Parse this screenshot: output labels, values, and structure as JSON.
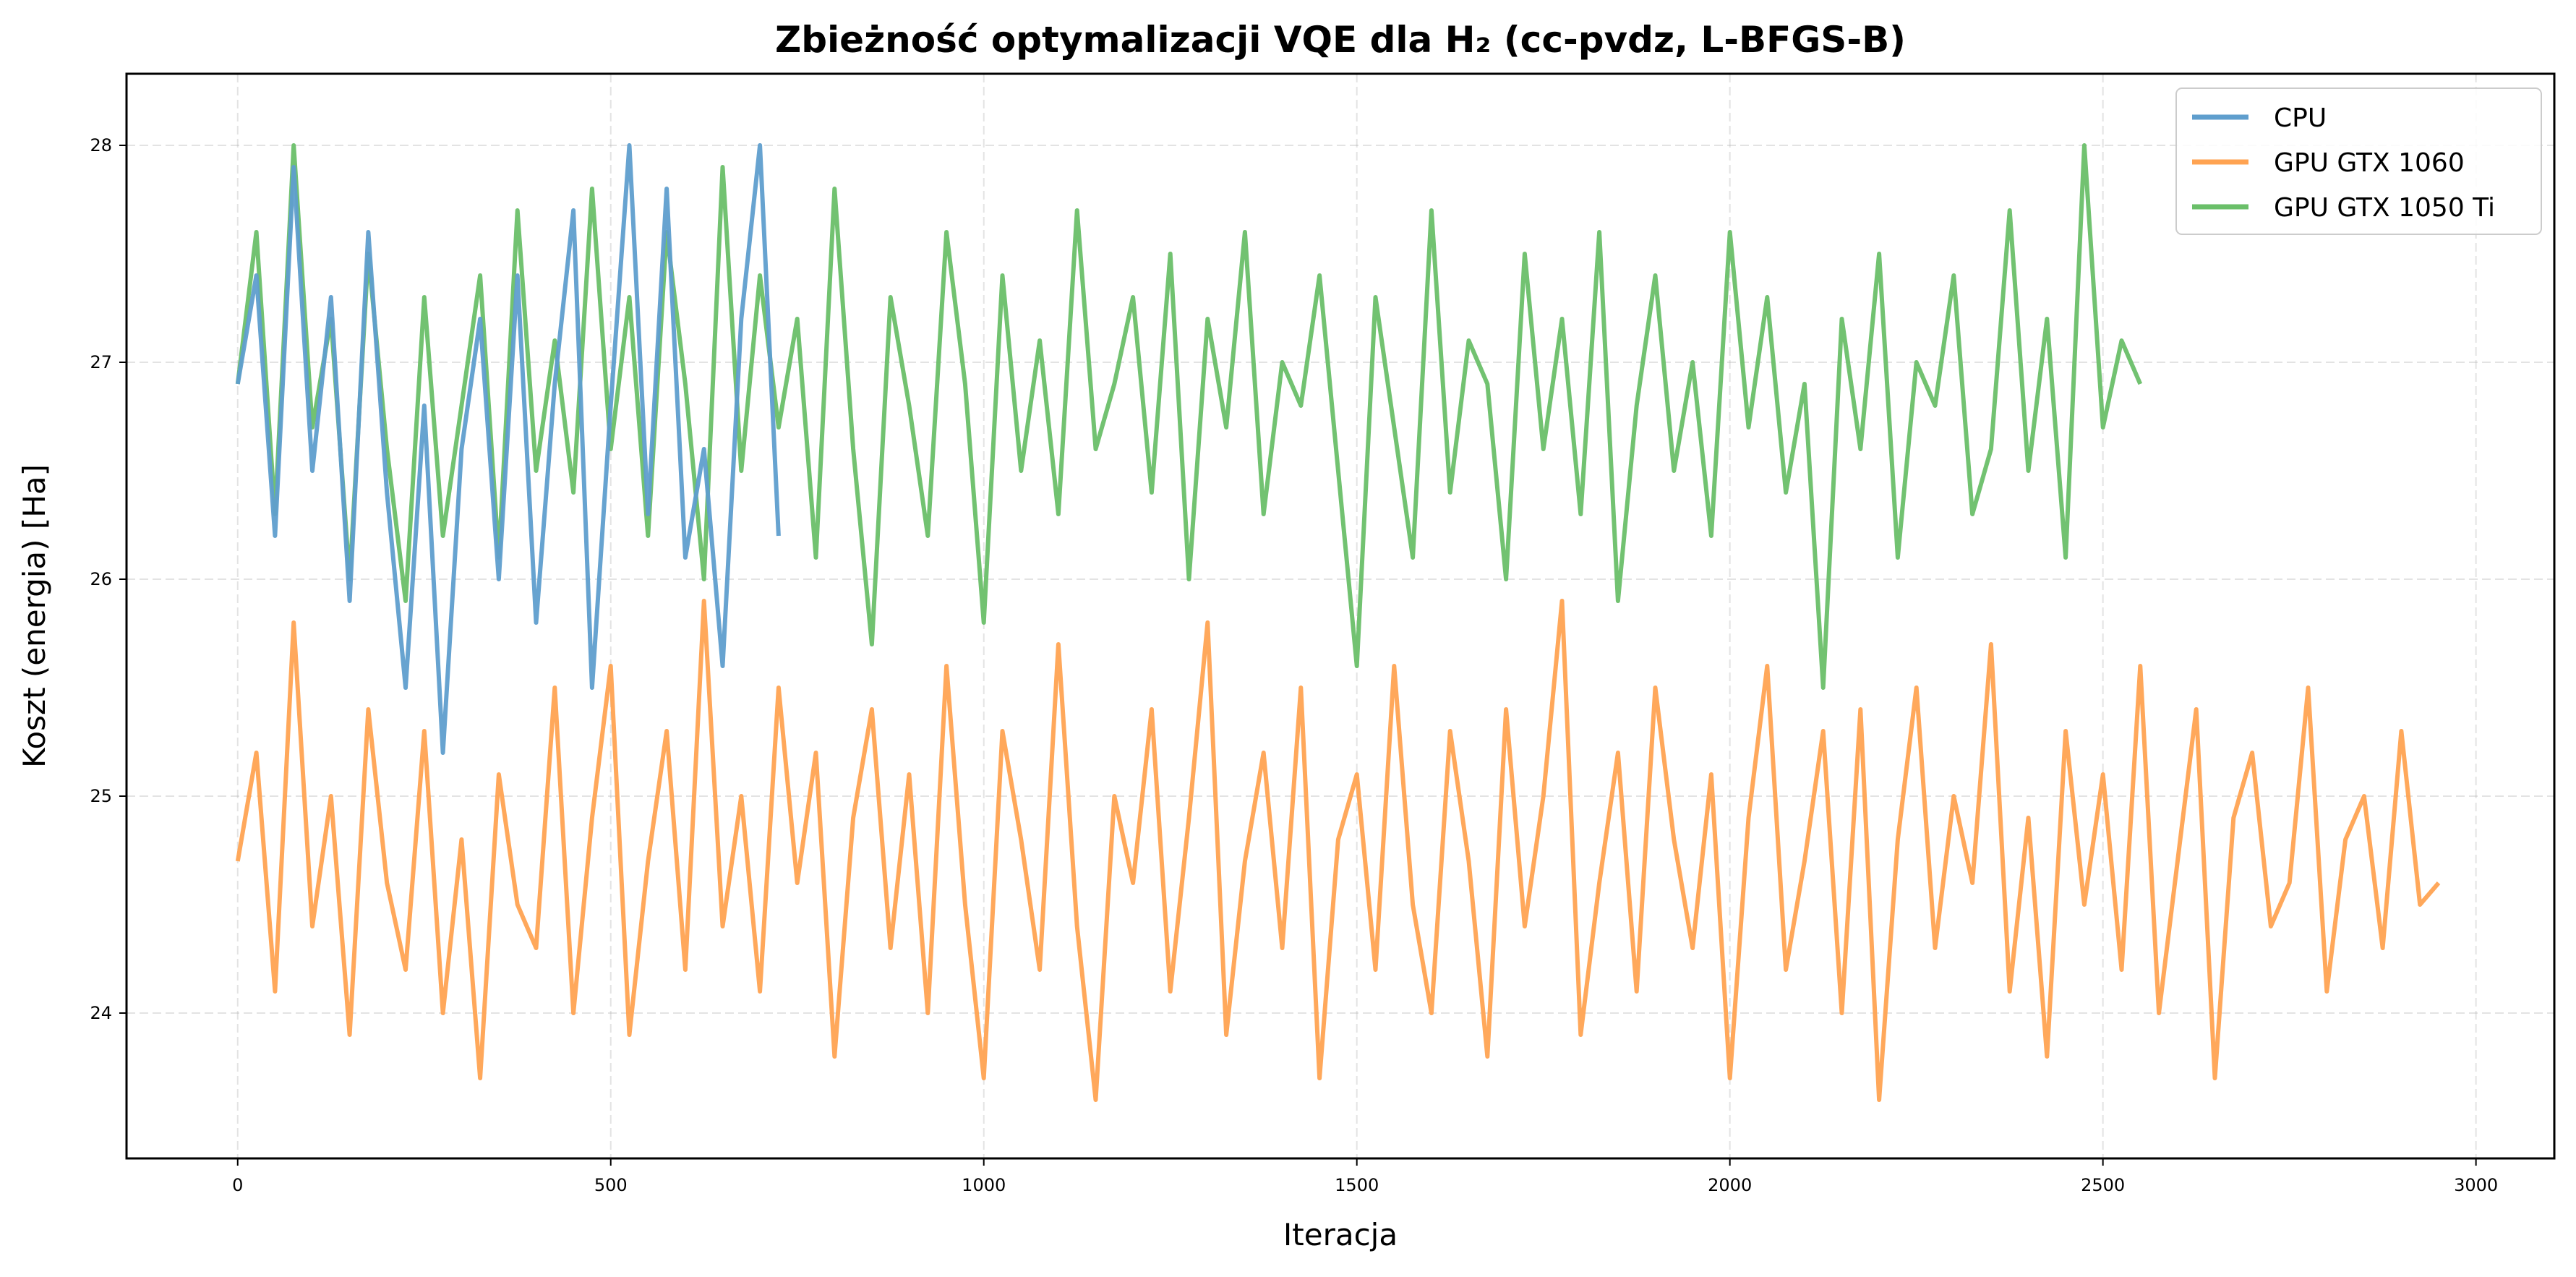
{
  "chart_data": {
    "type": "line",
    "title": "Zbieżność optymalizacji VQE dla H₂ (cc-pvdz, L-BFGS-B)",
    "xlabel": "Iteracja",
    "ylabel": "Koszt (energia) [Ha]",
    "xlim": [
      -149,
      3105
    ],
    "ylim": [
      23.33,
      28.33
    ],
    "xticks": [
      "0",
      "500",
      "1000",
      "1500",
      "2000",
      "2500",
      "3000"
    ],
    "yticks": [
      "24",
      "25",
      "26",
      "27",
      "28"
    ],
    "grid": true,
    "legend_position": "top-right",
    "x_step": 25,
    "series": [
      {
        "name": "CPU",
        "color": "#5f9ecd",
        "x_start": 0,
        "values": [
          26.9,
          27.4,
          26.2,
          27.9,
          26.5,
          27.3,
          25.9,
          27.6,
          26.4,
          25.5,
          26.8,
          25.2,
          26.6,
          27.2,
          26.0,
          27.4,
          25.8,
          26.9,
          27.7,
          25.5,
          26.8,
          28.0,
          26.3,
          27.8,
          26.1,
          26.6,
          25.6,
          27.2,
          28.0,
          26.2
        ]
      },
      {
        "name": "GPU GTX 1060",
        "color": "#ffa352",
        "x_start": 0,
        "values": [
          24.7,
          25.2,
          24.1,
          25.8,
          24.4,
          25.0,
          23.9,
          25.4,
          24.6,
          24.2,
          25.3,
          24.0,
          24.8,
          23.7,
          25.1,
          24.5,
          24.3,
          25.5,
          24.0,
          24.9,
          25.6,
          23.9,
          24.7,
          25.3,
          24.2,
          25.9,
          24.4,
          25.0,
          24.1,
          25.5,
          24.6,
          25.2,
          23.8,
          24.9,
          25.4,
          24.3,
          25.1,
          24.0,
          25.6,
          24.5,
          23.7,
          25.3,
          24.8,
          24.2,
          25.7,
          24.4,
          23.6,
          25.0,
          24.6,
          25.4,
          24.1,
          24.9,
          25.8,
          23.9,
          24.7,
          25.2,
          24.3,
          25.5,
          23.7,
          24.8,
          25.1,
          24.2,
          25.6,
          24.5,
          24.0,
          25.3,
          24.7,
          23.8,
          25.4,
          24.4,
          25.0,
          25.9,
          23.9,
          24.6,
          25.2,
          24.1,
          25.5,
          24.8,
          24.3,
          25.1,
          23.7,
          24.9,
          25.6,
          24.2,
          24.7,
          25.3,
          24.0,
          25.4,
          23.6,
          24.8,
          25.5,
          24.3,
          25.0,
          24.6,
          25.7,
          24.1,
          24.9,
          23.8,
          25.3,
          24.5,
          25.1,
          24.2,
          25.6,
          24.0,
          24.7,
          25.4,
          23.7,
          24.9,
          25.2,
          24.4,
          24.6,
          25.5,
          24.1,
          24.8,
          25.0,
          24.3,
          25.3,
          24.5,
          24.6
        ]
      },
      {
        "name": "GPU GTX 1050 Ti",
        "color": "#6abf69",
        "x_start": 0,
        "values": [
          26.9,
          27.6,
          26.3,
          28.0,
          26.7,
          27.2,
          26.0,
          27.5,
          26.6,
          25.9,
          27.3,
          26.2,
          26.8,
          27.4,
          26.1,
          27.7,
          26.5,
          27.1,
          26.4,
          27.8,
          26.6,
          27.3,
          26.2,
          27.6,
          26.9,
          26.0,
          27.9,
          26.5,
          27.4,
          26.7,
          27.2,
          26.1,
          27.8,
          26.6,
          25.7,
          27.3,
          26.8,
          26.2,
          27.6,
          26.9,
          25.8,
          27.4,
          26.5,
          27.1,
          26.3,
          27.7,
          26.6,
          26.9,
          27.3,
          26.4,
          27.5,
          26.0,
          27.2,
          26.7,
          27.6,
          26.3,
          27.0,
          26.8,
          27.4,
          26.5,
          25.6,
          27.3,
          26.7,
          26.1,
          27.7,
          26.4,
          27.1,
          26.9,
          26.0,
          27.5,
          26.6,
          27.2,
          26.3,
          27.6,
          25.9,
          26.8,
          27.4,
          26.5,
          27.0,
          26.2,
          27.6,
          26.7,
          27.3,
          26.4,
          26.9,
          25.5,
          27.2,
          26.6,
          27.5,
          26.1,
          27.0,
          26.8,
          27.4,
          26.3,
          26.6,
          27.7,
          26.5,
          27.2,
          26.1,
          28.0,
          26.7,
          27.1,
          26.9
        ]
      }
    ]
  }
}
